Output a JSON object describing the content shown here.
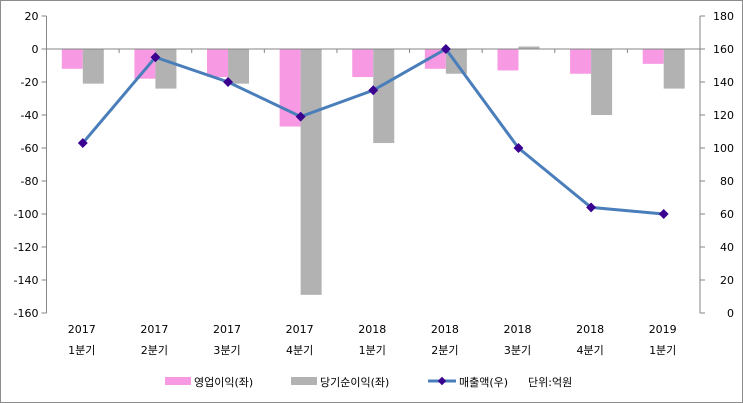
{
  "chart_data": {
    "type": "bar",
    "title": "",
    "categories": [
      {
        "year": "2017",
        "quarter": "1분기"
      },
      {
        "year": "2017",
        "quarter": "2분기"
      },
      {
        "year": "2017",
        "quarter": "3분기"
      },
      {
        "year": "2017",
        "quarter": "4분기"
      },
      {
        "year": "2018",
        "quarter": "1분기"
      },
      {
        "year": "2018",
        "quarter": "2분기"
      },
      {
        "year": "2018",
        "quarter": "3분기"
      },
      {
        "year": "2018",
        "quarter": "4분기"
      },
      {
        "year": "2019",
        "quarter": "1분기"
      }
    ],
    "left_axis": {
      "range": [
        -160,
        20
      ],
      "step": 20,
      "ticks": [
        "20",
        "0",
        "-20",
        "-40",
        "-60",
        "-80",
        "-100",
        "-120",
        "-140",
        "-160"
      ]
    },
    "right_axis": {
      "range": [
        0,
        180
      ],
      "step": 20,
      "ticks": [
        "180",
        "160",
        "140",
        "120",
        "100",
        "80",
        "60",
        "40",
        "20",
        "0"
      ]
    },
    "series": [
      {
        "name": "영업이익(좌)",
        "type": "bar",
        "axis": "left",
        "color": "#f79ae3",
        "values": [
          -12,
          -18,
          -17,
          -47,
          -17,
          -12,
          -13,
          -15,
          -9
        ]
      },
      {
        "name": "당기순이익(좌)",
        "type": "bar",
        "axis": "left",
        "color": "#b2b2b2",
        "values": [
          -21,
          -24,
          -21,
          -149,
          -57,
          -15,
          1.5,
          -40,
          -24
        ]
      },
      {
        "name": "매출액(우)",
        "type": "line",
        "axis": "right",
        "color": "#4a7ebb",
        "marker_color": "#3a0090",
        "values": [
          103,
          155,
          140,
          119,
          135,
          160,
          100,
          64,
          60
        ]
      }
    ],
    "unit_note": "단위:억원",
    "legend_position": "bottom",
    "grid": false
  }
}
